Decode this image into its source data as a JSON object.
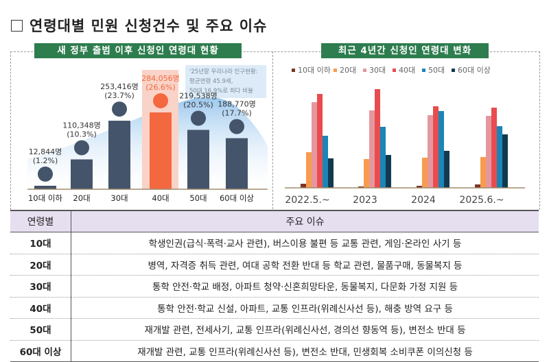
{
  "title": "연령대별 민원 신청건수 및 주요 이슈",
  "chart_data": [
    {
      "type": "bar",
      "title": "새 정부 출범 이후 신청인 연령대 현황",
      "categories": [
        "10대 이하",
        "20대",
        "30대",
        "40대",
        "50대",
        "60대 이상"
      ],
      "values": [
        12844,
        110348,
        253416,
        284056,
        219538,
        188770
      ],
      "value_labels": [
        "12,844명",
        "110,348명",
        "253,416명",
        "284,056명",
        "219,538명",
        "188,770명"
      ],
      "percent_labels": [
        "(1.2%)",
        "(10.3%)",
        "(23.7%)",
        "(26.6%)",
        "(20.5%)",
        "(17.7%)"
      ],
      "highlight_index": 3,
      "annotation": [
        "'25년말 우리나라 인구현황:",
        "평균연령 45.9세,",
        "50대 16.9%로 최다 비율"
      ],
      "colors": {
        "bar": "#44546a",
        "highlight": "#f4683f",
        "highlight_bg": "#f9d3c8",
        "curve": "#9cc8ee"
      }
    },
    {
      "type": "bar",
      "title": "최근 4년간 신청인 연령대 변화",
      "categories": [
        "2022.5.~",
        "2023",
        "2024",
        "2025.6.~"
      ],
      "legend_position": "top",
      "series": [
        {
          "name": "10대 이하",
          "color": "#7b3526",
          "values": [
            6,
            2,
            3,
            5
          ]
        },
        {
          "name": "20대",
          "color": "#f89b4e",
          "values": [
            52,
            42,
            44,
            45
          ]
        },
        {
          "name": "30대",
          "color": "#e5979f",
          "values": [
            125,
            113,
            106,
            105
          ]
        },
        {
          "name": "40대",
          "color": "#e84c4f",
          "values": [
            137,
            144,
            119,
            117
          ]
        },
        {
          "name": "50대",
          "color": "#1a86b8",
          "values": [
            76,
            89,
            112,
            90
          ]
        },
        {
          "name": "60대 이상",
          "color": "#123a4f",
          "values": [
            43,
            48,
            54,
            78
          ]
        }
      ]
    }
  ],
  "table": {
    "headers": [
      "연령별",
      "주요 이슈"
    ],
    "rows": [
      [
        "10대",
        "학생인권(급식·폭력·교사 관련), 버스이용 불편 등 교통 관련, 게임·온라인 사기 등"
      ],
      [
        "20대",
        "병역, 자격증 취득 관련, 여대 공학 전환 반대 등 학교 관련, 물품구매, 동물복지 등"
      ],
      [
        "30대",
        "통학 안전·학교 배정, 아파트 청약·신혼희망타운, 동물복지, 다문화 가정 지원 등"
      ],
      [
        "40대",
        "통학 안전·학교 신설, 아파트, 교통 인프라(위례신사선 등), 해충 방역 요구 등"
      ],
      [
        "50대",
        "재개발 관련, 전세사기, 교통 인프라(위례신사선, 경의선 향동역 등), 변전소 반대 등"
      ],
      [
        "60대 이상",
        "재개발 관련, 교통 인프라(위례신사선 등), 변전소 반대, 민생회복 소비쿠폰 이의신청 등"
      ]
    ]
  }
}
